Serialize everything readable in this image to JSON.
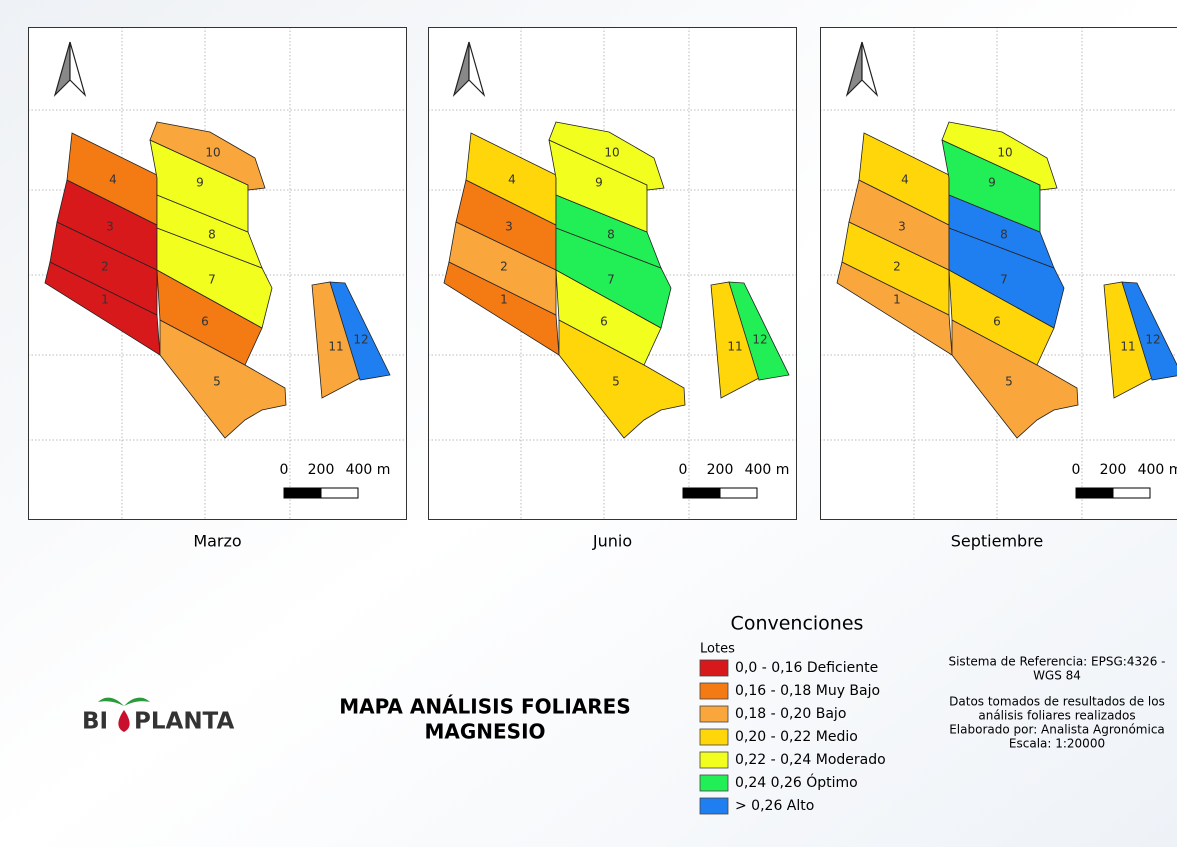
{
  "maps": [
    {
      "title": "Marzo",
      "lots": [
        {
          "label": "1",
          "color": "#d7191c"
        },
        {
          "label": "2",
          "color": "#d7191c"
        },
        {
          "label": "3",
          "color": "#d7191c"
        },
        {
          "label": "4",
          "color": "#f47a14"
        },
        {
          "label": "5",
          "color": "#f9a63c"
        },
        {
          "label": "6",
          "color": "#f47a14"
        },
        {
          "label": "7",
          "color": "#f2ff1e"
        },
        {
          "label": "8",
          "color": "#f2ff1e"
        },
        {
          "label": "9",
          "color": "#f2ff1e"
        },
        {
          "label": "10",
          "color": "#f9a63c"
        },
        {
          "label": "11",
          "color": "#f9a63c"
        },
        {
          "label": "12",
          "color": "#1f7ff0"
        }
      ]
    },
    {
      "title": "Junio",
      "lots": [
        {
          "label": "1",
          "color": "#f47a14"
        },
        {
          "label": "2",
          "color": "#f9a63c"
        },
        {
          "label": "3",
          "color": "#f47a14"
        },
        {
          "label": "4",
          "color": "#ffd60a"
        },
        {
          "label": "5",
          "color": "#ffd60a"
        },
        {
          "label": "6",
          "color": "#f2ff1e"
        },
        {
          "label": "7",
          "color": "#22ee55"
        },
        {
          "label": "8",
          "color": "#22ee55"
        },
        {
          "label": "9",
          "color": "#f2ff1e"
        },
        {
          "label": "10",
          "color": "#f2ff1e"
        },
        {
          "label": "11",
          "color": "#ffd60a"
        },
        {
          "label": "12",
          "color": "#22ee55"
        }
      ]
    },
    {
      "title": "Septiembre",
      "lots": [
        {
          "label": "1",
          "color": "#f9a63c"
        },
        {
          "label": "2",
          "color": "#ffd60a"
        },
        {
          "label": "3",
          "color": "#f9a63c"
        },
        {
          "label": "4",
          "color": "#ffd60a"
        },
        {
          "label": "5",
          "color": "#f9a63c"
        },
        {
          "label": "6",
          "color": "#ffd60a"
        },
        {
          "label": "7",
          "color": "#1f7ff0"
        },
        {
          "label": "8",
          "color": "#1f7ff0"
        },
        {
          "label": "9",
          "color": "#22ee55"
        },
        {
          "label": "10",
          "color": "#f2ff1e"
        },
        {
          "label": "11",
          "color": "#ffd60a"
        },
        {
          "label": "12",
          "color": "#1f7ff0"
        }
      ]
    }
  ],
  "scale_bar": [
    "0",
    "200",
    "400 m"
  ],
  "legend": {
    "title": "Convenciones",
    "subtitle": "Lotes",
    "items": [
      {
        "label": "0,0 - 0,16 Deficiente",
        "color": "#d7191c"
      },
      {
        "label": "0,16 - 0,18 Muy Bajo",
        "color": "#f47a14"
      },
      {
        "label": "0,18 - 0,20 Bajo",
        "color": "#f9a63c"
      },
      {
        "label": "0,20 - 0,22 Medio",
        "color": "#ffd60a"
      },
      {
        "label": "0,22 - 0,24 Moderado",
        "color": "#f2ff1e"
      },
      {
        "label": "0,24  0,26 Óptimo",
        "color": "#22ee55"
      },
      {
        "label": "> 0,26 Alto",
        "color": "#1f7ff0"
      }
    ]
  },
  "logo": {
    "left": "BI",
    "right": "PLANTA"
  },
  "title": [
    "MAPA ANÁLISIS FOLIARES",
    "MAGNESIO"
  ],
  "notes": [
    [
      "Sistema de Referencia: EPSG:4326 -",
      "WGS 84"
    ],
    [
      "Datos tomados de resultados de los",
      "análisis foliares realizados",
      "Elaborado por: Analista Agronómica",
      "Escala: 1:20000"
    ]
  ]
}
